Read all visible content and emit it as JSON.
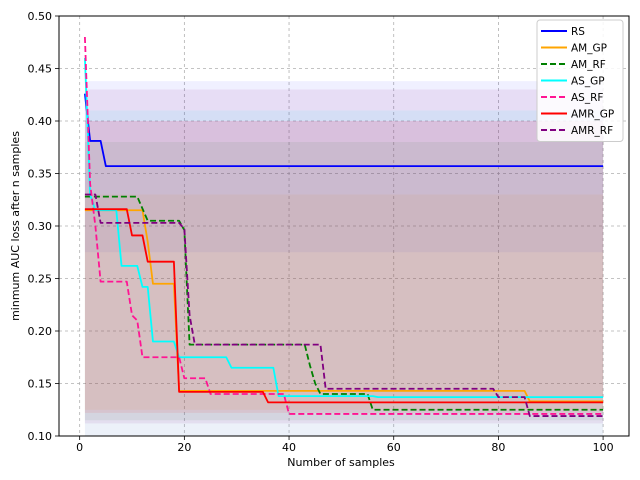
{
  "chart_data": {
    "type": "line",
    "title": "",
    "xlabel": "Number of samples",
    "ylabel": "minmum AUC loss after n samples",
    "xlim": [
      -3.95,
      104.95
    ],
    "ylim": [
      0.1,
      0.5
    ],
    "xticks": [
      0,
      20,
      40,
      60,
      80,
      100
    ],
    "yticks": [
      0.1,
      0.15,
      0.2,
      0.25,
      0.3,
      0.35,
      0.4,
      0.45,
      0.5
    ],
    "xtick_labels": [
      "0",
      "20",
      "40",
      "60",
      "80",
      "100"
    ],
    "ytick_labels": [
      "0.10",
      "0.15",
      "0.20",
      "0.25",
      "0.30",
      "0.35",
      "0.40",
      "0.45",
      "0.50"
    ],
    "grid": true,
    "legend_position": "top-right",
    "series": [
      {
        "name": "RS",
        "color": "#0000ff",
        "dash": "solid",
        "points": [
          [
            1,
            0.426
          ],
          [
            2,
            0.381
          ],
          [
            4,
            0.381
          ],
          [
            5,
            0.357
          ],
          [
            100,
            0.357
          ]
        ],
        "band": {
          "lower": 0.275,
          "upper": 0.438,
          "opacity": 0.06
        }
      },
      {
        "name": "AM_GP",
        "color": "#ffa500",
        "dash": "solid",
        "points": [
          [
            1,
            0.315
          ],
          [
            12,
            0.315
          ],
          [
            13,
            0.285
          ],
          [
            14,
            0.245
          ],
          [
            18,
            0.245
          ],
          [
            19,
            0.143
          ],
          [
            85,
            0.143
          ],
          [
            86,
            0.133
          ],
          [
            100,
            0.133
          ]
        ],
        "band": {
          "lower": 0.125,
          "upper": 0.33,
          "opacity": 0.08
        }
      },
      {
        "name": "AM_RF",
        "color": "#008000",
        "dash": "dashed",
        "points": [
          [
            1,
            0.328
          ],
          [
            11,
            0.328
          ],
          [
            13,
            0.305
          ],
          [
            19,
            0.305
          ],
          [
            20,
            0.296
          ],
          [
            21,
            0.187
          ],
          [
            43,
            0.187
          ],
          [
            44,
            0.167
          ],
          [
            45,
            0.15
          ],
          [
            46,
            0.14
          ],
          [
            55,
            0.14
          ],
          [
            56,
            0.125
          ],
          [
            100,
            0.125
          ]
        ],
        "band": {
          "lower": 0.115,
          "upper": 0.38,
          "opacity": 0.07
        }
      },
      {
        "name": "AS_GP",
        "color": "#00ffff",
        "dash": "solid",
        "points": [
          [
            1,
            0.46
          ],
          [
            2,
            0.33
          ],
          [
            3,
            0.315
          ],
          [
            7,
            0.315
          ],
          [
            8,
            0.262
          ],
          [
            11,
            0.262
          ],
          [
            12,
            0.242
          ],
          [
            13,
            0.242
          ],
          [
            14,
            0.19
          ],
          [
            18,
            0.19
          ],
          [
            19,
            0.175
          ],
          [
            28,
            0.175
          ],
          [
            29,
            0.165
          ],
          [
            37,
            0.165
          ],
          [
            38,
            0.138
          ],
          [
            56,
            0.138
          ],
          [
            57,
            0.137
          ],
          [
            100,
            0.137
          ]
        ],
        "band": {
          "lower": 0.1,
          "upper": 0.41,
          "opacity": 0.08
        }
      },
      {
        "name": "AS_RF",
        "color": "#ff1493",
        "dash": "dashed",
        "points": [
          [
            1,
            0.48
          ],
          [
            2,
            0.34
          ],
          [
            3,
            0.3
          ],
          [
            4,
            0.247
          ],
          [
            9,
            0.247
          ],
          [
            10,
            0.215
          ],
          [
            11,
            0.21
          ],
          [
            12,
            0.175
          ],
          [
            19,
            0.175
          ],
          [
            20,
            0.155
          ],
          [
            24,
            0.155
          ],
          [
            25,
            0.14
          ],
          [
            39,
            0.14
          ],
          [
            40,
            0.121
          ],
          [
            100,
            0.121
          ]
        ],
        "band": {
          "lower": 0.1,
          "upper": 0.4,
          "opacity": 0.06
        }
      },
      {
        "name": "AMR_GP",
        "color": "#ff0000",
        "dash": "solid",
        "points": [
          [
            1,
            0.316
          ],
          [
            9,
            0.316
          ],
          [
            10,
            0.291
          ],
          [
            12,
            0.291
          ],
          [
            13,
            0.266
          ],
          [
            18,
            0.266
          ],
          [
            19,
            0.142
          ],
          [
            35,
            0.142
          ],
          [
            36,
            0.132
          ],
          [
            100,
            0.132
          ]
        ],
        "band": {
          "lower": 0.122,
          "upper": 0.4,
          "opacity": 0.08
        }
      },
      {
        "name": "AMR_RF",
        "color": "#800080",
        "dash": "dashed",
        "points": [
          [
            1,
            0.33
          ],
          [
            3,
            0.33
          ],
          [
            4,
            0.303
          ],
          [
            19,
            0.303
          ],
          [
            20,
            0.297
          ],
          [
            21,
            0.215
          ],
          [
            22,
            0.187
          ],
          [
            46,
            0.187
          ],
          [
            47,
            0.145
          ],
          [
            79,
            0.145
          ],
          [
            80,
            0.137
          ],
          [
            85,
            0.137
          ],
          [
            86,
            0.119
          ],
          [
            100,
            0.119
          ]
        ],
        "band": {
          "lower": 0.112,
          "upper": 0.43,
          "opacity": 0.08
        }
      }
    ]
  }
}
